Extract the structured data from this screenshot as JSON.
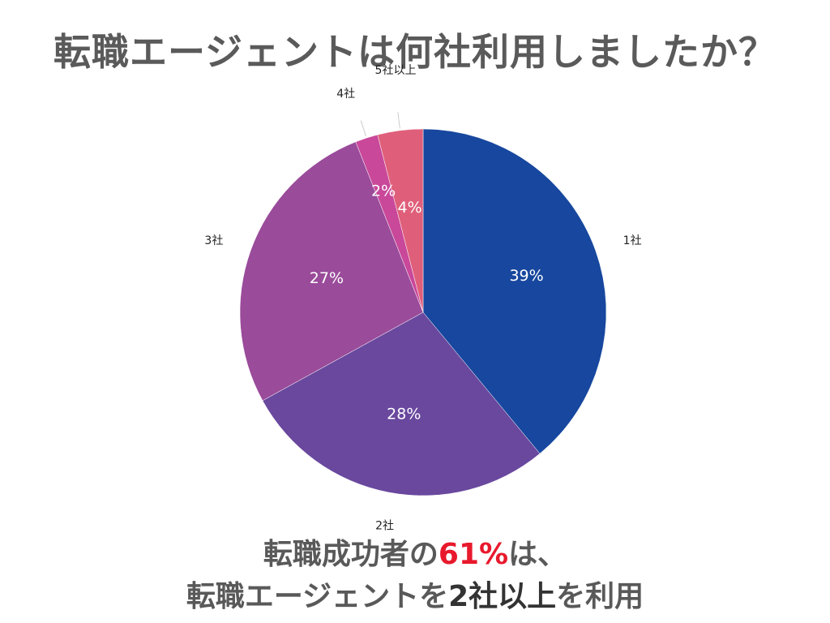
{
  "title": "転職エージェントは何社利用しましたか？",
  "chart_data": {
    "type": "pie",
    "title": "転職エージェントは何社利用しましたか？",
    "categories": [
      "1社",
      "2社",
      "3社",
      "4社",
      "5社以上"
    ],
    "values": [
      39,
      28,
      27,
      2,
      4
    ],
    "value_labels": [
      "39%",
      "28%",
      "27%",
      "2%",
      "4%"
    ],
    "unit": "%",
    "colors": [
      "#17479e",
      "#69489e",
      "#9a4b9a",
      "#c9489a",
      "#df5f7a"
    ],
    "start_angle": "12 o'clock",
    "direction": "clockwise",
    "legend": "none"
  },
  "caption": {
    "line1_prefix": "転職成功者の",
    "line1_highlight": "61%",
    "line1_suffix": "は、",
    "line2_prefix": "転職エージェントを",
    "line2_highlight": "2社以上",
    "line2_suffix": "を利用"
  }
}
